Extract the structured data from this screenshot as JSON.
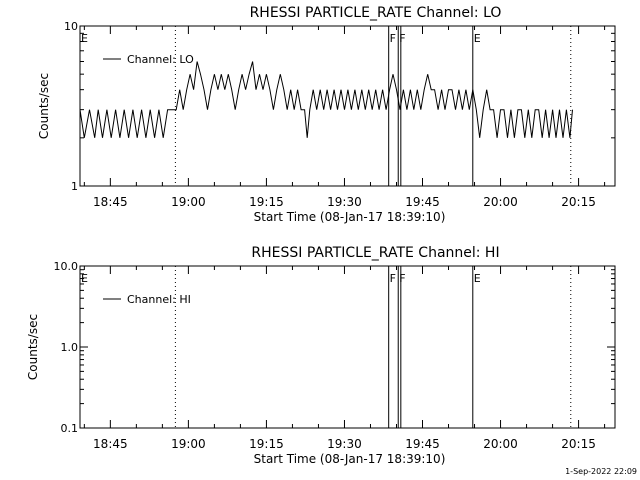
{
  "footer_timestamp": "1-Sep-2022 22:09",
  "chart_data": [
    {
      "type": "line",
      "title": "RHESSI PARTICLE_RATE Channel: LO",
      "xlabel": "Start Time (08-Jan-17 18:39:10)",
      "ylabel": "Counts/sec",
      "yscale": "log",
      "ylim": [
        1,
        10
      ],
      "yticks": [
        {
          "v": 10,
          "label": "10"
        },
        {
          "v": 1,
          "label": "1"
        }
      ],
      "xlim": [
        "18:39:10",
        "20:22:00"
      ],
      "xticks": [
        "18:45",
        "19:00",
        "19:15",
        "19:30",
        "19:45",
        "20:00",
        "20:15"
      ],
      "legend": {
        "location": "top-left",
        "label": "Channel: LO"
      },
      "markers": [
        {
          "time": "18:39:10",
          "label": "E",
          "style": "solid"
        },
        {
          "time": "18:57:30",
          "label": "",
          "style": "dotted"
        },
        {
          "time": "19:38:30",
          "label": "F",
          "style": "solid"
        },
        {
          "time": "19:40:20",
          "label": "F",
          "style": "solid"
        },
        {
          "time": "19:40:50",
          "label": "",
          "style": "solid"
        },
        {
          "time": "19:54:40",
          "label": "E",
          "style": "solid"
        },
        {
          "time": "20:13:30",
          "label": "",
          "style": "dotted"
        }
      ],
      "series": [
        {
          "name": "Channel: LO",
          "points": [
            [
              "18:39:10",
              3
            ],
            [
              "18:40:00",
              2
            ],
            [
              "18:41:00",
              3
            ],
            [
              "18:42:00",
              2
            ],
            [
              "18:42:40",
              3
            ],
            [
              "18:43:30",
              2
            ],
            [
              "18:44:20",
              3
            ],
            [
              "18:45:10",
              2
            ],
            [
              "18:46:00",
              3
            ],
            [
              "18:46:50",
              2
            ],
            [
              "18:47:40",
              3
            ],
            [
              "18:48:30",
              2
            ],
            [
              "18:49:20",
              3
            ],
            [
              "18:50:10",
              2
            ],
            [
              "18:51:00",
              3
            ],
            [
              "18:51:50",
              2
            ],
            [
              "18:52:40",
              3
            ],
            [
              "18:53:30",
              2
            ],
            [
              "18:54:20",
              3
            ],
            [
              "18:55:10",
              2
            ],
            [
              "18:56:00",
              3
            ],
            [
              "18:56:50",
              3
            ],
            [
              "18:57:40",
              3
            ],
            [
              "18:58:20",
              4
            ],
            [
              "18:59:00",
              3
            ],
            [
              "18:59:40",
              4
            ],
            [
              "19:00:20",
              5
            ],
            [
              "19:01:00",
              4
            ],
            [
              "19:01:40",
              6
            ],
            [
              "19:02:20",
              5
            ],
            [
              "19:03:00",
              4
            ],
            [
              "19:03:40",
              3
            ],
            [
              "19:04:20",
              4
            ],
            [
              "19:05:00",
              5
            ],
            [
              "19:05:40",
              4
            ],
            [
              "19:06:20",
              5
            ],
            [
              "19:07:00",
              4
            ],
            [
              "19:07:40",
              5
            ],
            [
              "19:08:20",
              4
            ],
            [
              "19:09:00",
              3
            ],
            [
              "19:09:40",
              4
            ],
            [
              "19:10:20",
              5
            ],
            [
              "19:11:00",
              4
            ],
            [
              "19:11:40",
              5
            ],
            [
              "19:12:20",
              6
            ],
            [
              "19:13:00",
              4
            ],
            [
              "19:13:40",
              5
            ],
            [
              "19:14:20",
              4
            ],
            [
              "19:15:00",
              5
            ],
            [
              "19:15:40",
              4
            ],
            [
              "19:16:20",
              3
            ],
            [
              "19:17:00",
              4
            ],
            [
              "19:17:40",
              5
            ],
            [
              "19:18:20",
              4
            ],
            [
              "19:19:00",
              3
            ],
            [
              "19:19:40",
              4
            ],
            [
              "19:20:20",
              3
            ],
            [
              "19:21:00",
              4
            ],
            [
              "19:21:40",
              3
            ],
            [
              "19:22:20",
              3
            ],
            [
              "19:22:50",
              2
            ],
            [
              "19:23:20",
              3
            ],
            [
              "19:24:00",
              4
            ],
            [
              "19:24:40",
              3
            ],
            [
              "19:25:20",
              4
            ],
            [
              "19:26:00",
              3
            ],
            [
              "19:26:40",
              4
            ],
            [
              "19:27:20",
              3
            ],
            [
              "19:28:00",
              4
            ],
            [
              "19:28:40",
              3
            ],
            [
              "19:29:20",
              4
            ],
            [
              "19:30:00",
              3
            ],
            [
              "19:30:40",
              4
            ],
            [
              "19:31:20",
              3
            ],
            [
              "19:32:00",
              4
            ],
            [
              "19:32:40",
              3
            ],
            [
              "19:33:20",
              4
            ],
            [
              "19:34:00",
              3
            ],
            [
              "19:34:40",
              4
            ],
            [
              "19:35:20",
              3
            ],
            [
              "19:36:00",
              4
            ],
            [
              "19:36:40",
              3
            ],
            [
              "19:37:20",
              4
            ],
            [
              "19:38:00",
              3
            ],
            [
              "19:38:40",
              4
            ],
            [
              "19:39:20",
              5
            ],
            [
              "19:40:00",
              4
            ],
            [
              "19:40:40",
              3
            ],
            [
              "19:41:20",
              4
            ],
            [
              "19:42:00",
              3
            ],
            [
              "19:42:40",
              4
            ],
            [
              "19:43:20",
              3
            ],
            [
              "19:44:00",
              4
            ],
            [
              "19:44:40",
              3
            ],
            [
              "19:45:20",
              4
            ],
            [
              "19:46:00",
              5
            ],
            [
              "19:46:40",
              4
            ],
            [
              "19:47:20",
              4
            ],
            [
              "19:48:00",
              3
            ],
            [
              "19:48:40",
              4
            ],
            [
              "19:49:20",
              3
            ],
            [
              "19:50:00",
              4
            ],
            [
              "19:50:40",
              4
            ],
            [
              "19:51:20",
              3
            ],
            [
              "19:52:00",
              4
            ],
            [
              "19:52:40",
              3
            ],
            [
              "19:53:20",
              4
            ],
            [
              "19:54:00",
              3
            ],
            [
              "19:54:40",
              4
            ],
            [
              "19:55:20",
              3
            ],
            [
              "19:56:00",
              2
            ],
            [
              "19:56:40",
              3
            ],
            [
              "19:57:20",
              4
            ],
            [
              "19:58:00",
              3
            ],
            [
              "19:58:40",
              3
            ],
            [
              "19:59:20",
              2
            ],
            [
              "20:00:00",
              3
            ],
            [
              "20:00:40",
              3
            ],
            [
              "20:01:20",
              2
            ],
            [
              "20:02:00",
              3
            ],
            [
              "20:02:40",
              2
            ],
            [
              "20:03:20",
              3
            ],
            [
              "20:04:00",
              3
            ],
            [
              "20:04:40",
              2
            ],
            [
              "20:05:20",
              3
            ],
            [
              "20:06:00",
              2
            ],
            [
              "20:06:40",
              3
            ],
            [
              "20:07:20",
              3
            ],
            [
              "20:08:00",
              2
            ],
            [
              "20:08:40",
              3
            ],
            [
              "20:09:20",
              2
            ],
            [
              "20:10:00",
              3
            ],
            [
              "20:10:40",
              2
            ],
            [
              "20:11:20",
              3
            ],
            [
              "20:12:00",
              2
            ],
            [
              "20:12:40",
              3
            ],
            [
              "20:13:20",
              2
            ],
            [
              "20:13:50",
              3
            ]
          ]
        }
      ]
    },
    {
      "type": "line",
      "title": "RHESSI PARTICLE_RATE Channel: HI",
      "xlabel": "Start Time (08-Jan-17 18:39:10)",
      "ylabel": "Counts/sec",
      "yscale": "log",
      "ylim": [
        0.1,
        10
      ],
      "yticks": [
        {
          "v": 10,
          "label": "10.0"
        },
        {
          "v": 1,
          "label": "1.0"
        },
        {
          "v": 0.1,
          "label": "0.1"
        }
      ],
      "xlim": [
        "18:39:10",
        "20:22:00"
      ],
      "xticks": [
        "18:45",
        "19:00",
        "19:15",
        "19:30",
        "19:45",
        "20:00",
        "20:15"
      ],
      "legend": {
        "location": "top-left",
        "label": "Channel: HI"
      },
      "markers": [
        {
          "time": "18:39:10",
          "label": "E",
          "style": "solid"
        },
        {
          "time": "18:57:30",
          "label": "",
          "style": "dotted"
        },
        {
          "time": "19:38:30",
          "label": "F",
          "style": "solid"
        },
        {
          "time": "19:40:20",
          "label": "F",
          "style": "solid"
        },
        {
          "time": "19:40:50",
          "label": "",
          "style": "solid"
        },
        {
          "time": "19:54:40",
          "label": "E",
          "style": "solid"
        },
        {
          "time": "20:13:30",
          "label": "",
          "style": "dotted"
        }
      ],
      "series": [
        {
          "name": "Channel: HI",
          "points": []
        }
      ]
    }
  ]
}
